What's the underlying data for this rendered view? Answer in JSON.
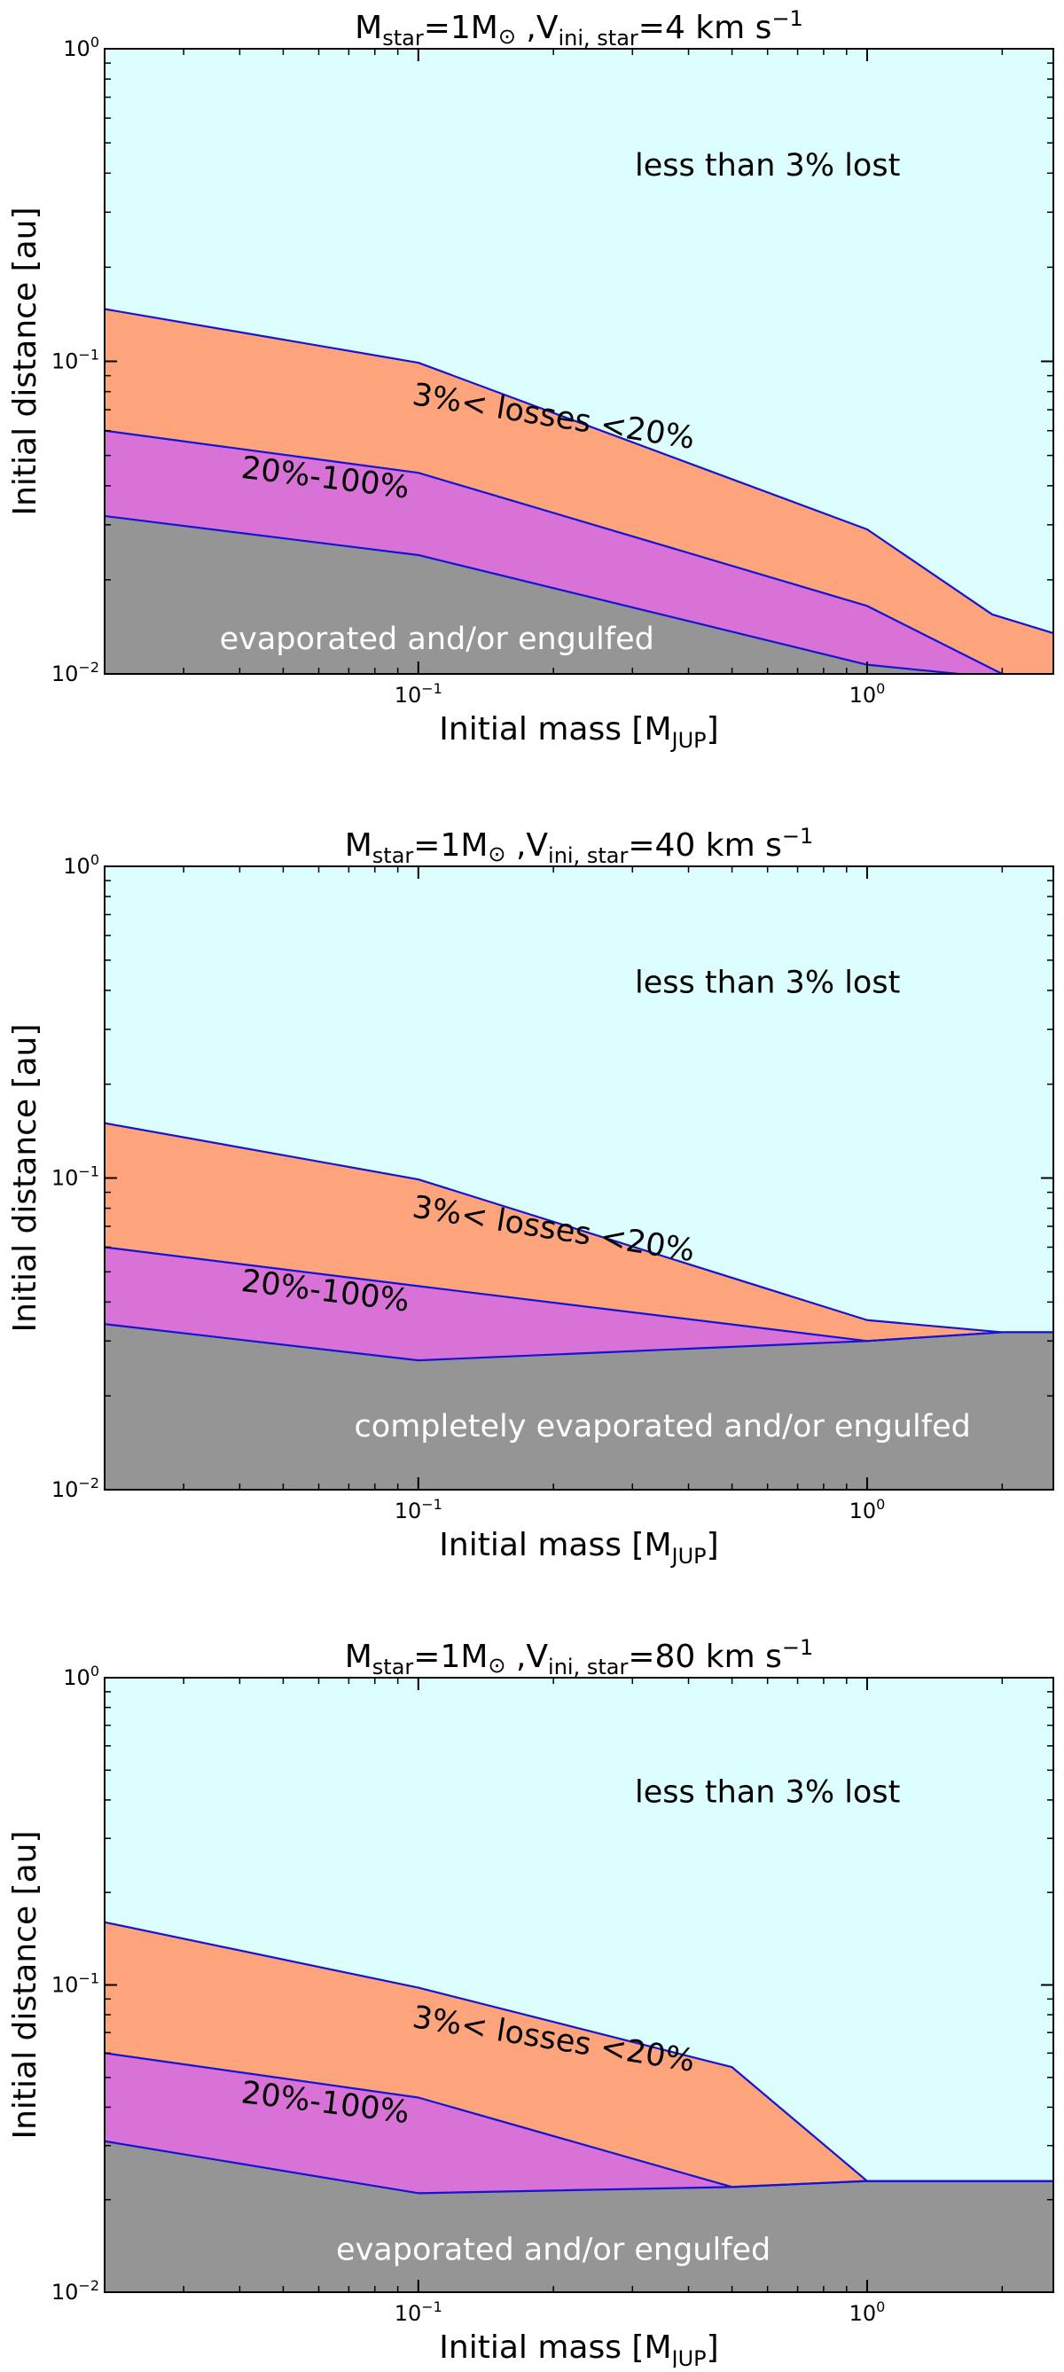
{
  "colors": {
    "upper": "#dcfefe",
    "orange": "#fea47d",
    "magenta": "#d972d6",
    "grey": "#959595",
    "boundary": "#1414d2",
    "region_text_light": "#ffffff",
    "region_text_dark": "#000000"
  },
  "chart_data": [
    {
      "type": "area",
      "title": {
        "prefix_main": "M",
        "prefix_sub": "star",
        "mid": "=1M",
        "sun": "⊙",
        "v_main": " ,V",
        "v_sub": "ini, star",
        "value": "=4 km s",
        "exp": "−1"
      },
      "xlabel": {
        "main": "Initial mass [M",
        "sub": "JUP",
        "close": "]"
      },
      "ylabel": "Initial distance [au]",
      "x_scale": "log",
      "y_scale": "log",
      "xlim": [
        0.02,
        2.6
      ],
      "ylim": [
        0.01,
        1.0
      ],
      "x_ticks": [
        {
          "value": 0.1,
          "base": "10",
          "exp": "−1"
        },
        {
          "value": 1.0,
          "base": "10",
          "exp": "0"
        }
      ],
      "y_ticks": [
        {
          "value": 0.01,
          "base": "10",
          "exp": "−2"
        },
        {
          "value": 0.1,
          "base": "10",
          "exp": "−1"
        },
        {
          "value": 1.0,
          "base": "10",
          "exp": "0"
        }
      ],
      "boundaries": [
        {
          "name": "3% loss limit",
          "x": [
            0.02,
            0.1,
            1.0,
            1.9,
            2.6
          ],
          "y": [
            0.147,
            0.099,
            0.029,
            0.0155,
            0.0135
          ]
        },
        {
          "name": "20% loss limit",
          "x": [
            0.02,
            0.1,
            1.0,
            2.0
          ],
          "y": [
            0.06,
            0.044,
            0.0165,
            0.01
          ]
        },
        {
          "name": "100% loss limit",
          "x": [
            0.02,
            0.1,
            1.0,
            1.6
          ],
          "y": [
            0.032,
            0.024,
            0.0107,
            0.01
          ]
        }
      ],
      "regions": [
        {
          "label": "less than 3% lost",
          "at": [
            0.6,
            0.42
          ],
          "rotate": 0,
          "light": false
        },
        {
          "label": "3%< losses <20%",
          "at": [
            0.2,
            0.066
          ],
          "rotate": 9,
          "light": false
        },
        {
          "label": "20%-100%",
          "at": [
            0.062,
            0.042
          ],
          "rotate": 7,
          "light": false
        },
        {
          "label": "evaporated and/or engulfed",
          "at": [
            0.11,
            0.0128
          ],
          "rotate": 0,
          "light": true
        }
      ]
    },
    {
      "type": "area",
      "title": {
        "prefix_main": "M",
        "prefix_sub": "star",
        "mid": "=1M",
        "sun": "⊙",
        "v_main": " ,V",
        "v_sub": "ini, star",
        "value": "=40 km s",
        "exp": "−1"
      },
      "xlabel": {
        "main": "Initial mass [M",
        "sub": "JUP",
        "close": "]"
      },
      "ylabel": "Initial distance [au]",
      "x_scale": "log",
      "y_scale": "log",
      "xlim": [
        0.02,
        2.6
      ],
      "ylim": [
        0.01,
        1.0
      ],
      "x_ticks": [
        {
          "value": 0.1,
          "base": "10",
          "exp": "−1"
        },
        {
          "value": 1.0,
          "base": "10",
          "exp": "0"
        }
      ],
      "y_ticks": [
        {
          "value": 0.01,
          "base": "10",
          "exp": "−2"
        },
        {
          "value": 0.1,
          "base": "10",
          "exp": "−1"
        },
        {
          "value": 1.0,
          "base": "10",
          "exp": "0"
        }
      ],
      "boundaries": [
        {
          "name": "3% loss limit",
          "x": [
            0.02,
            0.1,
            1.0,
            2.0,
            2.6
          ],
          "y": [
            0.15,
            0.099,
            0.035,
            0.032,
            0.032
          ]
        },
        {
          "name": "20% loss limit",
          "x": [
            0.02,
            0.1,
            1.0,
            2.0,
            2.6
          ],
          "y": [
            0.06,
            0.045,
            0.03,
            0.032,
            0.032
          ]
        },
        {
          "name": "100% loss limit",
          "x": [
            0.02,
            0.1,
            1.0,
            2.0,
            2.6
          ],
          "y": [
            0.034,
            0.026,
            0.03,
            0.032,
            0.032
          ]
        }
      ],
      "regions": [
        {
          "label": "less than 3% lost",
          "at": [
            0.6,
            0.42
          ],
          "rotate": 0,
          "light": false
        },
        {
          "label": "3%< losses <20%",
          "at": [
            0.2,
            0.068
          ],
          "rotate": 9,
          "light": false
        },
        {
          "label": "20%-100%",
          "at": [
            0.062,
            0.043
          ],
          "rotate": 7,
          "light": false
        },
        {
          "label": "completely evaporated and/or engulfed",
          "at": [
            0.35,
            0.0158
          ],
          "rotate": 0,
          "light": true
        }
      ]
    },
    {
      "type": "area",
      "title": {
        "prefix_main": "M",
        "prefix_sub": "star",
        "mid": "=1M",
        "sun": "⊙",
        "v_main": " ,V",
        "v_sub": "ini, star",
        "value": "=80 km s",
        "exp": "−1"
      },
      "xlabel": {
        "main": "Initial mass [M",
        "sub": "JUP",
        "close": "]"
      },
      "ylabel": "Initial distance [au]",
      "x_scale": "log",
      "y_scale": "log",
      "xlim": [
        0.02,
        2.6
      ],
      "ylim": [
        0.01,
        1.0
      ],
      "x_ticks": [
        {
          "value": 0.1,
          "base": "10",
          "exp": "−1"
        },
        {
          "value": 1.0,
          "base": "10",
          "exp": "0"
        }
      ],
      "y_ticks": [
        {
          "value": 0.01,
          "base": "10",
          "exp": "−2"
        },
        {
          "value": 0.1,
          "base": "10",
          "exp": "−1"
        },
        {
          "value": 1.0,
          "base": "10",
          "exp": "0"
        }
      ],
      "boundaries": [
        {
          "name": "3% loss limit",
          "x": [
            0.02,
            0.1,
            0.5,
            1.0,
            2.6
          ],
          "y": [
            0.16,
            0.098,
            0.054,
            0.023,
            0.023
          ]
        },
        {
          "name": "20% loss limit",
          "x": [
            0.02,
            0.1,
            0.5,
            1.0,
            2.6
          ],
          "y": [
            0.06,
            0.043,
            0.022,
            0.023,
            0.023
          ]
        },
        {
          "name": "100% loss limit",
          "x": [
            0.02,
            0.1,
            0.5,
            1.0,
            2.6
          ],
          "y": [
            0.031,
            0.021,
            0.022,
            0.023,
            0.023
          ]
        }
      ],
      "regions": [
        {
          "label": "less than 3% lost",
          "at": [
            0.6,
            0.42
          ],
          "rotate": 0,
          "light": false
        },
        {
          "label": "3%< losses <20%",
          "at": [
            0.2,
            0.066
          ],
          "rotate": 9,
          "light": false
        },
        {
          "label": "20%-100%",
          "at": [
            0.062,
            0.041
          ],
          "rotate": 7,
          "light": false
        },
        {
          "label": "evaporated and/or engulfed",
          "at": [
            0.2,
            0.0136
          ],
          "rotate": 0,
          "light": true
        }
      ]
    }
  ]
}
